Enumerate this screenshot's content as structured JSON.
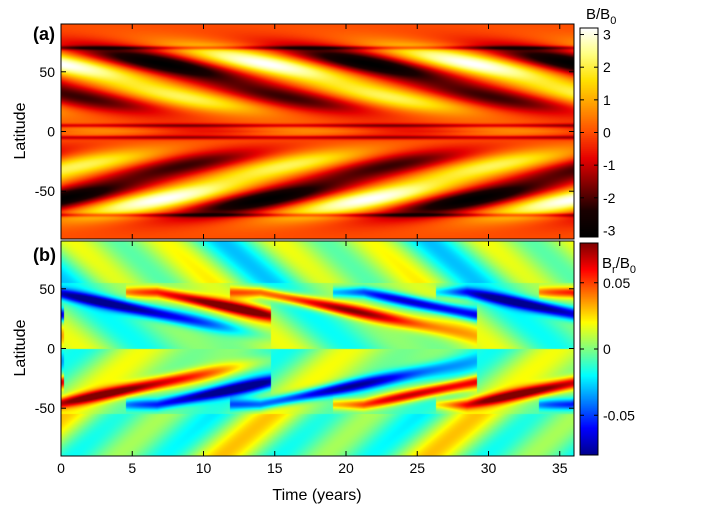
{
  "chart_data": [
    {
      "type": "heatmap",
      "panel_label": "(a)",
      "title": "",
      "xlabel": "",
      "ylabel": "Latitude",
      "xlim": [
        0,
        36
      ],
      "ylim": [
        -90,
        90
      ],
      "xticks": [],
      "yticks": [
        -50,
        0,
        50
      ],
      "colorbar": {
        "title": "B/B",
        "title_sub": "0",
        "range": [
          -3.2,
          3.2
        ],
        "ticks": [
          -3,
          -2,
          -1,
          0,
          1,
          2,
          3
        ],
        "colormap": "hot",
        "stops": [
          "#000000",
          "#1a0000",
          "#800000",
          "#e60000",
          "#ff4d00",
          "#ff9900",
          "#ffe100",
          "#ffff80",
          "#ffffff"
        ]
      },
      "field": {
        "description": "Toroidal field butterfly diagram, alternating polarity, equatorward drift",
        "period_years": 14.5,
        "peak_latitude": 57,
        "amplitude": 3.2,
        "positive_maxima_centers_years": [
          3,
          17.5,
          32
        ],
        "negative_maxima_centers_years": [
          10.5,
          25
        ],
        "narrow_bands_latitude": [
          70,
          -70,
          5,
          -5
        ]
      }
    },
    {
      "type": "heatmap",
      "panel_label": "(b)",
      "title": "",
      "xlabel": "Time (years)",
      "ylabel": "Latitude",
      "xlim": [
        0,
        36
      ],
      "ylim": [
        -90,
        90
      ],
      "xticks": [
        0,
        5,
        10,
        15,
        20,
        25,
        30,
        35
      ],
      "yticks": [
        -50,
        0,
        50
      ],
      "colorbar": {
        "title": "B",
        "title_sub1": "r",
        "title_mid": "/B",
        "title_sub2": "0",
        "range": [
          -0.08,
          0.08
        ],
        "ticks": [
          -0.05,
          0,
          0.05
        ],
        "tick_labels": [
          "-0.05",
          "0",
          "0.05"
        ],
        "colormap": "jet",
        "stops": [
          "#00008f",
          "#0000ff",
          "#0080ff",
          "#00ffff",
          "#80ff80",
          "#ffff00",
          "#ff8000",
          "#ff0000",
          "#800000"
        ]
      },
      "field": {
        "description": "Radial field with diagonal bands drifting from ~48 deg latitude toward ~15 deg",
        "period_years": 14.5,
        "band_start_latitude": 48,
        "band_end_latitude": 15,
        "amplitude": 0.08
      }
    }
  ]
}
